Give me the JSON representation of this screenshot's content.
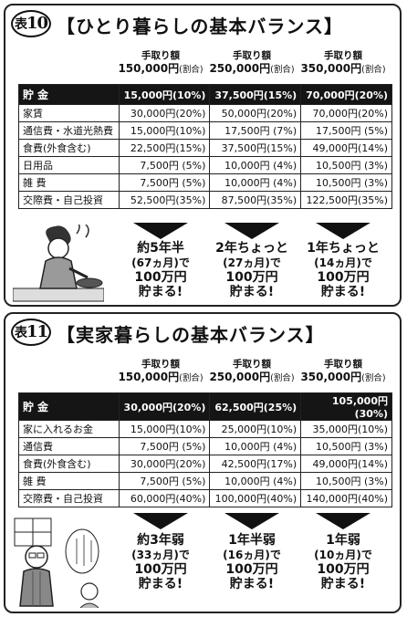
{
  "t10": {
    "badge": "表",
    "badge_num": "10",
    "title": "【ひとり暮らしの基本バランス】",
    "columns": [
      {
        "head": "手取り額",
        "amount": "150,000円",
        "pct": "(割合)"
      },
      {
        "head": "手取り額",
        "amount": "250,000円",
        "pct": "(割合)"
      },
      {
        "head": "手取り額",
        "amount": "350,000円",
        "pct": "(割合)"
      }
    ],
    "header_row": {
      "label": "貯金",
      "values": [
        "15,000円(10%)",
        "37,500円(15%)",
        "70,000円(20%)"
      ]
    },
    "rows": [
      {
        "label": "家賃",
        "values": [
          "30,000円(20%)",
          "50,000円(20%)",
          "70,000円(20%)"
        ]
      },
      {
        "label": "通信費・水道光熱費",
        "values": [
          "15,000円(10%)",
          "17,500円  (7%)",
          "17,500円  (5%)"
        ]
      },
      {
        "label": "食費(外食含む)",
        "values": [
          "22,500円(15%)",
          "37,500円(15%)",
          "49,000円(14%)"
        ]
      },
      {
        "label": "日用品",
        "values": [
          "7,500円  (5%)",
          "10,000円  (4%)",
          "10,500円  (3%)"
        ]
      },
      {
        "label": "雑 費",
        "values": [
          "7,500円  (5%)",
          "10,000円  (4%)",
          "10,500円  (3%)"
        ]
      },
      {
        "label": "交際費・自己投資",
        "values": [
          "52,500円(35%)",
          "87,500円(35%)",
          "122,500円(35%)"
        ]
      }
    ],
    "results": [
      {
        "l1": "約5年半",
        "l2": "(67ヵ月)で",
        "l3": "100万円",
        "l4": "貯まる!"
      },
      {
        "l1": "2年ちょっと",
        "l2": "(27ヵ月)で",
        "l3": "100万円",
        "l4": "貯まる!"
      },
      {
        "l1": "1年ちょっと",
        "l2": "(14ヵ月)で",
        "l3": "100万円",
        "l4": "貯まる!"
      }
    ]
  },
  "t11": {
    "badge": "表",
    "badge_num": "11",
    "title": "【実家暮らしの基本バランス】",
    "columns": [
      {
        "head": "手取り額",
        "amount": "150,000円",
        "pct": "(割合)"
      },
      {
        "head": "手取り額",
        "amount": "250,000円",
        "pct": "(割合)"
      },
      {
        "head": "手取り額",
        "amount": "350,000円",
        "pct": "(割合)"
      }
    ],
    "header_row": {
      "label": "貯金",
      "values": [
        "30,000円(20%)",
        "62,500円(25%)",
        "105,000円(30%)"
      ]
    },
    "rows": [
      {
        "label": "家に入れるお金",
        "values": [
          "15,000円(10%)",
          "25,000円(10%)",
          "35,000円(10%)"
        ]
      },
      {
        "label": "通信費",
        "values": [
          "7,500円  (5%)",
          "10,000円  (4%)",
          "10,500円  (3%)"
        ]
      },
      {
        "label": "食費(外食含む)",
        "values": [
          "30,000円(20%)",
          "42,500円(17%)",
          "49,000円(14%)"
        ]
      },
      {
        "label": "雑 費",
        "values": [
          "7,500円  (5%)",
          "10,000円  (4%)",
          "10,500円  (3%)"
        ]
      },
      {
        "label": "交際費・自己投資",
        "values": [
          "60,000円(40%)",
          "100,000円(40%)",
          "140,000円(40%)"
        ]
      }
    ],
    "results": [
      {
        "l1": "約3年弱",
        "l2": "(33ヵ月)で",
        "l3": "100万円",
        "l4": "貯まる!"
      },
      {
        "l1": "1年半弱",
        "l2": "(16ヵ月)で",
        "l3": "100万円",
        "l4": "貯まる!"
      },
      {
        "l1": "1年弱",
        "l2": "(10ヵ月)で",
        "l3": "100万円",
        "l4": "貯まる!"
      }
    ]
  }
}
